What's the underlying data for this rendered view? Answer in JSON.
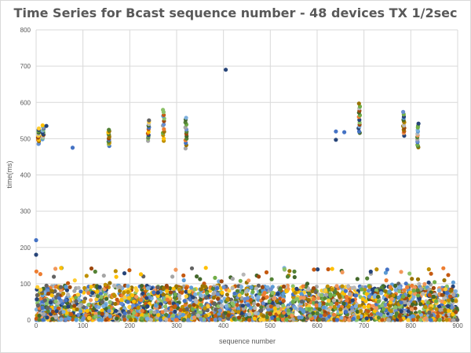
{
  "chart_data": {
    "type": "scatter",
    "title": "Time Series for Bcast sequence number - 48 devices TX 1/2sec",
    "xlabel": "sequence number",
    "ylabel": "time(ms)",
    "xlim": [
      0,
      900
    ],
    "ylim": [
      0,
      800
    ],
    "x_ticks": [
      0,
      100,
      200,
      300,
      400,
      500,
      600,
      700,
      800,
      900
    ],
    "y_ticks": [
      0,
      100,
      200,
      300,
      400,
      500,
      600,
      700,
      800
    ],
    "grid": true,
    "series_count": 48,
    "colors": [
      "#264478",
      "#4472c4",
      "#ed7d31",
      "#a5a5a5",
      "#ffc000",
      "#5b9bd5",
      "#70ad47",
      "#9e480e",
      "#43682b",
      "#997300",
      "#636363",
      "#698ed0",
      "#f1975a",
      "#b7b7b7",
      "#ffcd33",
      "#7cafdd",
      "#8cc168",
      "#c55a11",
      "#548235",
      "#bf9000"
    ],
    "clusters": [
      {
        "x": 5,
        "y_range": [
          485,
          530
        ]
      },
      {
        "x": 15,
        "y_range": [
          500,
          535
        ]
      },
      {
        "x": 155,
        "y_range": [
          480,
          525
        ]
      },
      {
        "x": 240,
        "y_range": [
          495,
          550
        ]
      },
      {
        "x": 272,
        "y_range": [
          495,
          580
        ]
      },
      {
        "x": 320,
        "y_range": [
          475,
          558
        ]
      },
      {
        "x": 690,
        "y_range": [
          515,
          595
        ]
      },
      {
        "x": 785,
        "y_range": [
          510,
          572
        ]
      },
      {
        "x": 815,
        "y_range": [
          475,
          540
        ]
      }
    ],
    "outliers": [
      {
        "x": 0,
        "y": 220
      },
      {
        "x": 0,
        "y": 180
      },
      {
        "x": 78,
        "y": 475
      },
      {
        "x": 405,
        "y": 690
      },
      {
        "x": 640,
        "y": 520
      },
      {
        "x": 640,
        "y": 497
      },
      {
        "x": 658,
        "y": 518
      },
      {
        "x": 22,
        "y": 535
      }
    ],
    "dense_band": {
      "x_range": [
        0,
        900
      ],
      "y_range": [
        0,
        145
      ],
      "typical_max": 100
    }
  }
}
